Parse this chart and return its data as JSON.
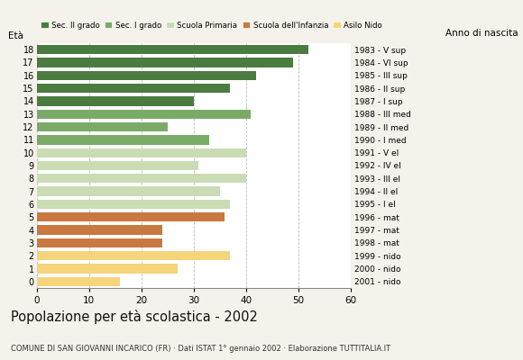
{
  "ages": [
    18,
    17,
    16,
    15,
    14,
    13,
    12,
    11,
    10,
    9,
    8,
    7,
    6,
    5,
    4,
    3,
    2,
    1,
    0
  ],
  "values": [
    52,
    49,
    42,
    37,
    30,
    41,
    25,
    33,
    40,
    31,
    40,
    35,
    37,
    36,
    24,
    24,
    37,
    27,
    16
  ],
  "right_labels": [
    "1983 - V sup",
    "1984 - VI sup",
    "1985 - III sup",
    "1986 - II sup",
    "1987 - I sup",
    "1988 - III med",
    "1989 - II med",
    "1990 - I med",
    "1991 - V el",
    "1992 - IV el",
    "1993 - III el",
    "1994 - II el",
    "1995 - I el",
    "1996 - mat",
    "1997 - mat",
    "1998 - mat",
    "1999 - nido",
    "2000 - nido",
    "2001 - nido"
  ],
  "colors": {
    "18": "#4a7c40",
    "17": "#4a7c40",
    "16": "#4a7c40",
    "15": "#4a7c40",
    "14": "#4a7c40",
    "13": "#7aaa68",
    "12": "#7aaa68",
    "11": "#7aaa68",
    "10": "#c9dcb4",
    "9": "#c9dcb4",
    "8": "#c9dcb4",
    "7": "#c9dcb4",
    "6": "#c9dcb4",
    "5": "#c87840",
    "4": "#c87840",
    "3": "#c87840",
    "2": "#f5d47a",
    "1": "#f5d47a",
    "0": "#f5d47a"
  },
  "legend_labels": [
    "Sec. II grado",
    "Sec. I grado",
    "Scuola Primaria",
    "Scuola dell'Infanzia",
    "Asilo Nido"
  ],
  "legend_colors": [
    "#4a7c40",
    "#7aaa68",
    "#c9dcb4",
    "#c87840",
    "#f5d47a"
  ],
  "title": "Popolazione per età scolastica - 2002",
  "subtitle": "COMUNE DI SAN GIOVANNI INCARICO (FR) · Dati ISTAT 1° gennaio 2002 · Elaborazione TUTTITALIA.IT",
  "xlabel_left": "Età",
  "xlabel_right": "Anno di nascita",
  "xlim": [
    0,
    60
  ],
  "xticks": [
    0,
    10,
    20,
    30,
    40,
    50,
    60
  ],
  "background_color": "#f5f2eb",
  "bar_background": "#ffffff",
  "grid_color": "#bbbbbb"
}
